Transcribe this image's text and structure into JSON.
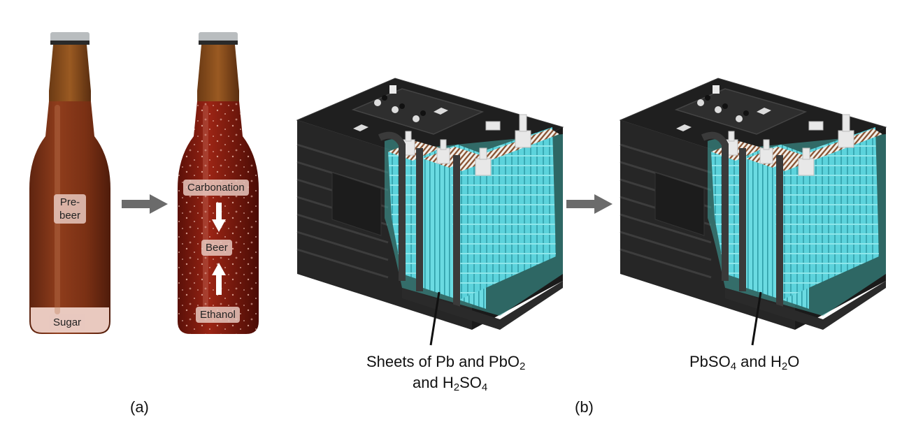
{
  "panel_a": {
    "caption": "(a)",
    "bottle_before": {
      "label_prebeer": "Pre-\nbeer",
      "label_sugar": "Sugar"
    },
    "bottle_after": {
      "label_carbonation": "Carbonation",
      "label_beer": "Beer",
      "label_ethanol": "Ethanol"
    }
  },
  "panel_b": {
    "caption": "(b)",
    "battery_before": {
      "line1_prefix": "Sheets of Pb and PbO",
      "line1_sub": "2",
      "line2_prefix": "and H",
      "line2_sub1": "2",
      "line2_mid": "SO",
      "line2_sub2": "4"
    },
    "battery_after": {
      "p1": "PbSO",
      "s1": "4",
      "p2": " and H",
      "s2": "2",
      "p3": "O"
    }
  },
  "colors": {
    "bottle_glass": "#8a3a1a",
    "bottle_liquid": "#7a2a0f",
    "beer_liquid": "#8b1a10",
    "battery_case": "#2b2b2b",
    "electrolyte": "#6fd3d8",
    "plate_stripe": "#8b5a3c",
    "arrow": "#666666"
  }
}
